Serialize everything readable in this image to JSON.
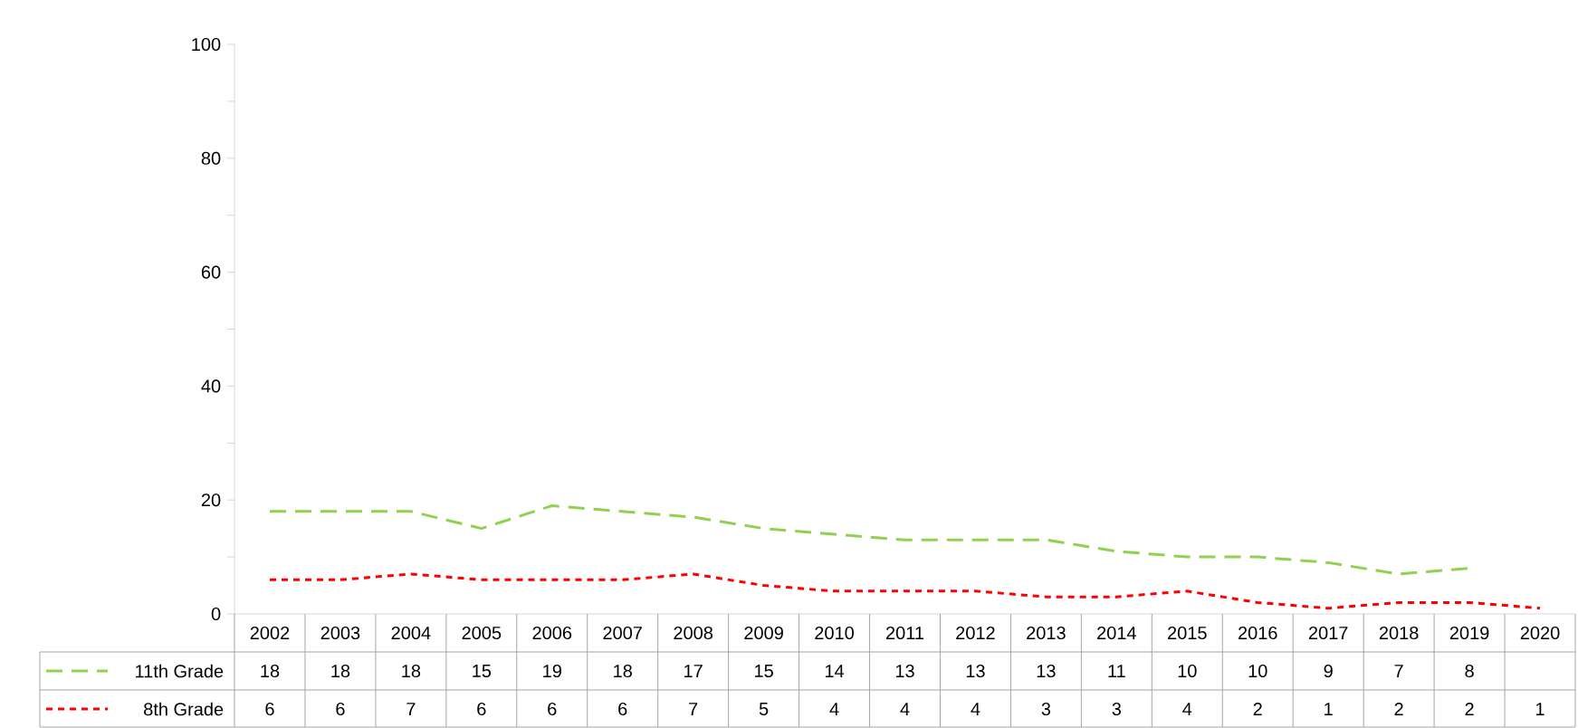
{
  "chart_data": {
    "type": "line",
    "categories": [
      "2002",
      "2003",
      "2004",
      "2005",
      "2006",
      "2007",
      "2008",
      "2009",
      "2010",
      "2011",
      "2012",
      "2013",
      "2014",
      "2015",
      "2016",
      "2017",
      "2018",
      "2019",
      "2020"
    ],
    "series": [
      {
        "name": "11th Grade",
        "color": "#92d050",
        "values": [
          18,
          18,
          18,
          15,
          19,
          18,
          17,
          15,
          14,
          13,
          13,
          13,
          11,
          10,
          10,
          9,
          7,
          8,
          null
        ]
      },
      {
        "name": "8th Grade",
        "color": "#ff0000",
        "values": [
          6,
          6,
          7,
          6,
          6,
          6,
          7,
          5,
          4,
          4,
          4,
          3,
          3,
          4,
          2,
          1,
          2,
          2,
          1
        ]
      }
    ],
    "ylim": [
      0,
      100
    ],
    "yticks": [
      0,
      20,
      40,
      60,
      80,
      100
    ],
    "line_style": "dashed",
    "legend": "bottom left",
    "data_labels": true,
    "grid": false,
    "marker": "none"
  }
}
